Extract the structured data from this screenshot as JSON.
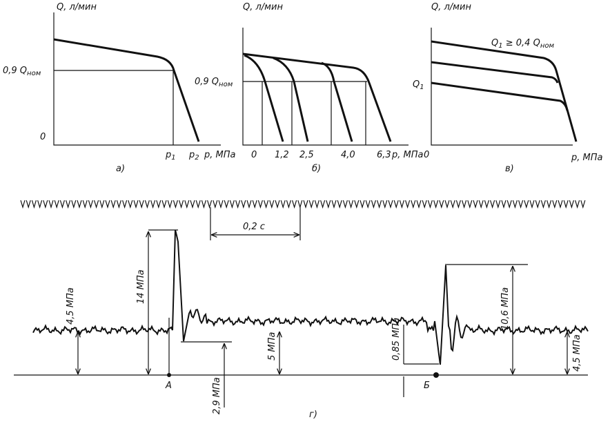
{
  "panel_a": {
    "y_label": "Q, л/мин",
    "level_label": "0,9 Q",
    "level_sub": "ном",
    "origin": "0",
    "p1": "p",
    "p1_sub": "1",
    "p2": "p",
    "p2_sub": "2",
    "x_label": "p, МПа",
    "caption": "а)"
  },
  "panel_b": {
    "y_label": "Q, л/мин",
    "level_label": "0,9 Q",
    "level_sub": "ном",
    "x_ticks": [
      "0",
      "1,2",
      "2,5",
      "4,0",
      "6,3"
    ],
    "x_label": "p, МПа",
    "caption": "б)"
  },
  "panel_c": {
    "y_label": "Q, л/мин",
    "note": "Q",
    "note_sub": "1",
    "note_rest": " ≥ 0,4 Q",
    "note_sub2": "ном",
    "level_label": "Q",
    "level_sub": "1",
    "origin": "0",
    "x_label": "p, МПа",
    "caption": "в)"
  },
  "panel_d": {
    "interval": "0,2 с",
    "measures": [
      "4,5 МПа",
      "14 МПа",
      "2,9 МПа",
      "5 МПа",
      "0,85 МПа",
      "10,6 МПа",
      "4,5 МПа"
    ],
    "point_a": "А",
    "point_b": "Б",
    "caption": "г)"
  }
}
